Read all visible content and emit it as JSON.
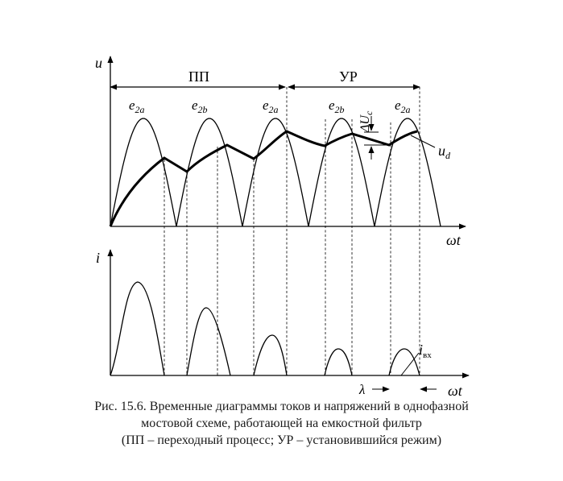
{
  "figure": {
    "labels": {
      "u_axis": "u",
      "i_axis": "i",
      "wt_top": "ωt",
      "wt_bottom": "ωt",
      "transient": "ПП",
      "steady": "УР",
      "e2a": "e",
      "e2a_sub": "2a",
      "e2b": "e",
      "e2b_sub": "2b",
      "ud": "u",
      "ud_sub": "d",
      "delta_uc": "ΔU",
      "delta_uc_sub": "c",
      "i_in": "i",
      "i_in_sub": "вх",
      "lambda": "λ"
    },
    "curve_labels": [
      {
        "name": "e",
        "sub": "2a"
      },
      {
        "name": "e",
        "sub": "2b"
      },
      {
        "name": "e",
        "sub": "2a"
      },
      {
        "name": "e",
        "sub": "2b"
      },
      {
        "name": "e",
        "sub": "2a"
      }
    ],
    "caption": [
      "Рис. 15.6. Временные диаграммы токов и напряжений в однофазной",
      "мостовой схеме, работающей на емкостной фильтр",
      "(ПП – переходный процесс; УР – установившийся режим)"
    ]
  }
}
